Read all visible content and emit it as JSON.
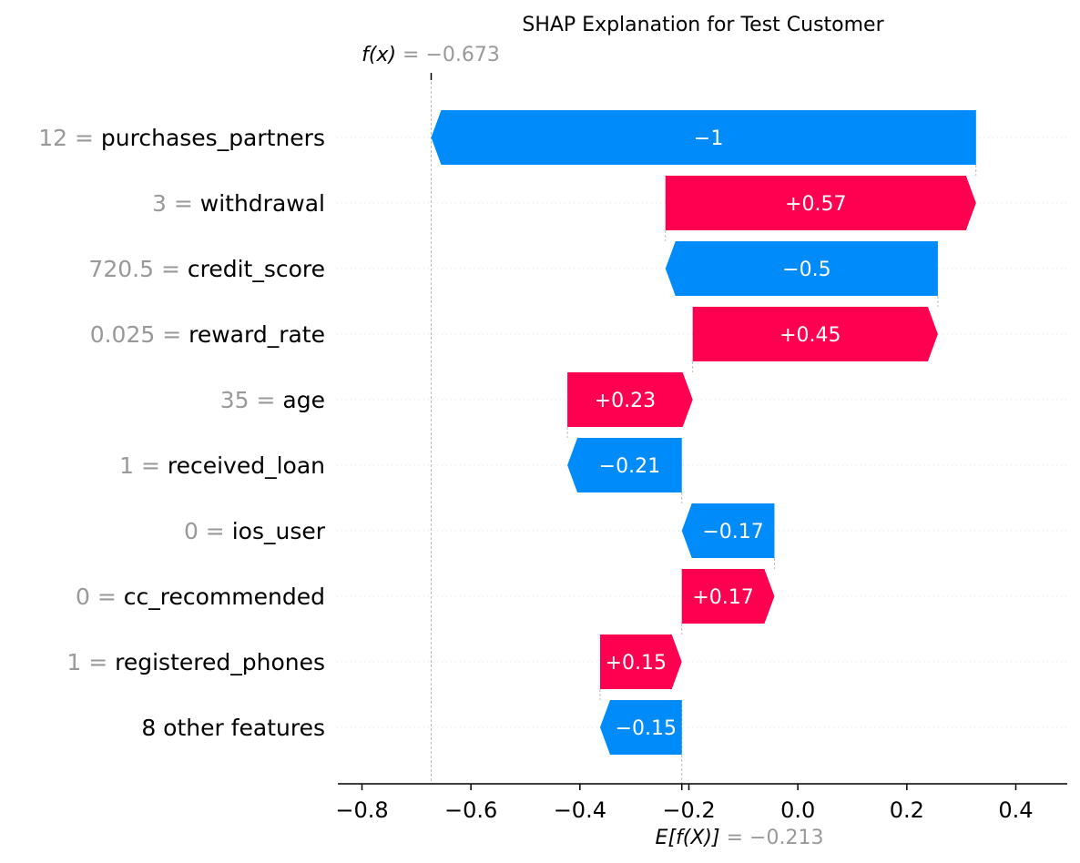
{
  "chart_data": {
    "type": "waterfall",
    "title": "SHAP Explanation for Test Customer",
    "fx": {
      "label": "f(x)",
      "value": "−0.673",
      "x": -0.673
    },
    "base": {
      "label": "E[f(X)]",
      "value": "−0.213",
      "x": -0.213
    },
    "xlim": [
      -0.84,
      0.5
    ],
    "xticks": [
      -0.8,
      -0.6,
      -0.4,
      -0.2,
      0.0,
      0.2,
      0.4
    ],
    "xtick_labels": [
      "−0.8",
      "−0.6",
      "−0.4",
      "−0.2",
      "0.0",
      "0.2",
      "0.4"
    ],
    "colors": {
      "positive": "#ff0051",
      "negative": "#008bfb"
    },
    "features": [
      {
        "value": "12",
        "name": "purchases_partners",
        "shap": -1.0,
        "label": "−1"
      },
      {
        "value": "3",
        "name": "withdrawal",
        "shap": 0.57,
        "label": "+0.57"
      },
      {
        "value": "720.5",
        "name": "credit_score",
        "shap": -0.5,
        "label": "−0.5"
      },
      {
        "value": "0.025",
        "name": "reward_rate",
        "shap": 0.45,
        "label": "+0.45"
      },
      {
        "value": "35",
        "name": "age",
        "shap": 0.23,
        "label": "+0.23"
      },
      {
        "value": "1",
        "name": "received_loan",
        "shap": -0.21,
        "label": "−0.21"
      },
      {
        "value": "0",
        "name": "ios_user",
        "shap": -0.17,
        "label": "−0.17"
      },
      {
        "value": "0",
        "name": "cc_recommended",
        "shap": 0.17,
        "label": "+0.17"
      },
      {
        "value": "1",
        "name": "registered_phones",
        "shap": 0.15,
        "label": "+0.15"
      },
      {
        "value": "",
        "name": "8 other features",
        "shap": -0.15,
        "label": "−0.15"
      }
    ]
  }
}
